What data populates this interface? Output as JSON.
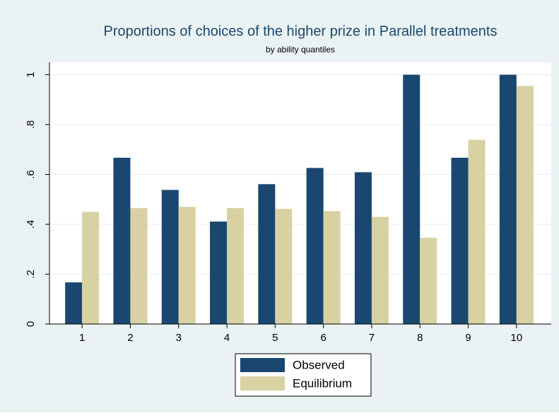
{
  "chart_data": {
    "type": "bar",
    "title": "Proportions of choices of the higher prize in Parallel treatments",
    "subtitle": "by ability quantiles",
    "categories": [
      "1",
      "2",
      "3",
      "4",
      "5",
      "6",
      "7",
      "8",
      "9",
      "10"
    ],
    "series": [
      {
        "name": "Observed",
        "color": "#1a476f",
        "values": [
          0.167,
          0.667,
          0.538,
          0.411,
          0.561,
          0.626,
          0.609,
          1,
          0.667,
          1
        ]
      },
      {
        "name": "Equilibrium",
        "color": "#d8d2a3",
        "values": [
          0.45,
          0.465,
          0.47,
          0.465,
          0.462,
          0.453,
          0.43,
          0.346,
          0.739,
          0.955
        ]
      }
    ],
    "ylim": [
      0,
      1.05
    ],
    "yticks": [
      0,
      {
        "value": 0.2,
        "label": ".2"
      },
      {
        "value": 0.4,
        "label": ".4"
      },
      {
        "value": 0.6,
        "label": ".6"
      },
      {
        "value": 0.8,
        "label": ".8"
      },
      1
    ],
    "grid": true,
    "legend_position": "bottom"
  }
}
